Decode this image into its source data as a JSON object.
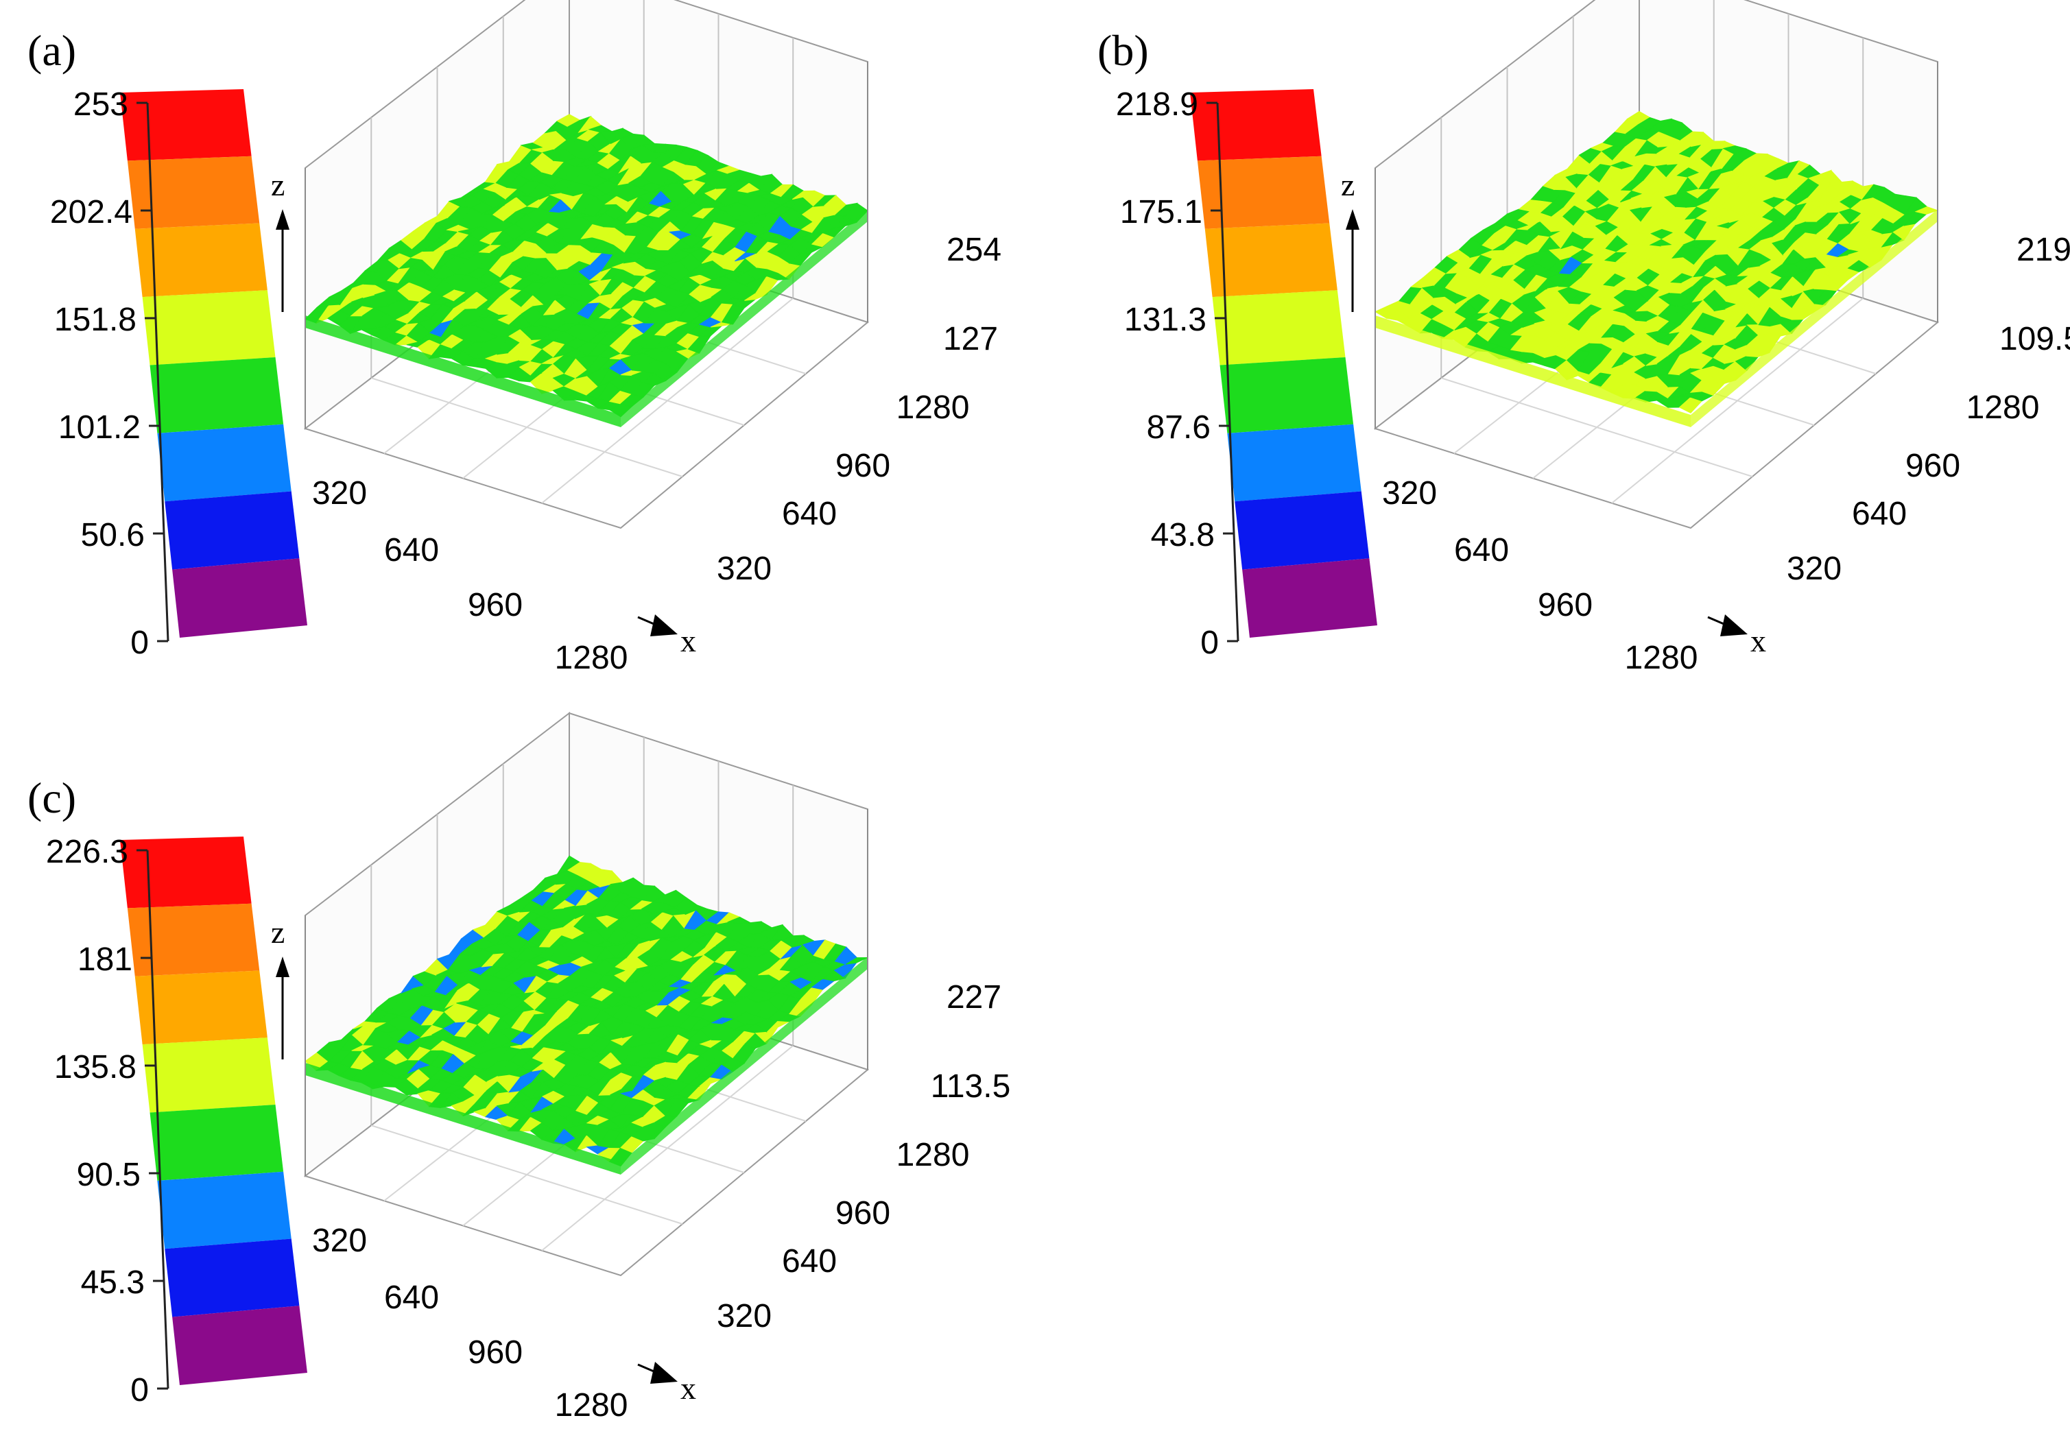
{
  "color_scale": [
    "#8b0a8b",
    "#0a18f0",
    "#0a82ff",
    "#1ddc1d",
    "#d8ff1a",
    "#ffa800",
    "#ff7e0a",
    "#ff0a0a"
  ],
  "chart_data": [
    {
      "type": "surface3d",
      "panel": "(a)",
      "colorbar_ticks": [
        "253",
        "202.4",
        "151.8",
        "101.2",
        "50.6",
        "0"
      ],
      "z_ticks": [
        "254",
        "127"
      ],
      "x_ticks": [
        "320",
        "640",
        "960",
        "1280"
      ],
      "y_ticks": [
        "1280",
        "960",
        "640",
        "320"
      ],
      "x_label": "x",
      "z_label": "z",
      "z_range": [
        0,
        253
      ],
      "surface": {
        "base": "#1ddc1d",
        "highlight": "#d8ff1a",
        "dip": "#0a82ff",
        "highlight_fraction": 0.22,
        "dip_fraction": 0.02
      }
    },
    {
      "type": "surface3d",
      "panel": "(b)",
      "colorbar_ticks": [
        "218.9",
        "175.1",
        "131.3",
        "87.6",
        "43.8",
        "0"
      ],
      "z_ticks": [
        "219",
        "109.5"
      ],
      "x_ticks": [
        "320",
        "640",
        "960",
        "1280"
      ],
      "y_ticks": [
        "1280",
        "960",
        "640",
        "320"
      ],
      "x_label": "x",
      "z_label": "z",
      "z_range": [
        0,
        218.9
      ],
      "surface": {
        "base": "#d8ff1a",
        "highlight": "#1ddc1d",
        "dip": "#0a82ff",
        "highlight_fraction": 0.38,
        "dip_fraction": 0.01
      }
    },
    {
      "type": "surface3d",
      "panel": "(c)",
      "colorbar_ticks": [
        "226.3",
        "181",
        "135.8",
        "90.5",
        "45.3",
        "0"
      ],
      "z_ticks": [
        "227",
        "113.5"
      ],
      "x_ticks": [
        "320",
        "640",
        "960",
        "1280"
      ],
      "y_ticks": [
        "1280",
        "960",
        "640",
        "320"
      ],
      "x_label": "x",
      "z_label": "z",
      "z_range": [
        0,
        226.3
      ],
      "surface": {
        "base": "#1ddc1d",
        "highlight": "#d8ff1a",
        "dip": "#0a82ff",
        "highlight_fraction": 0.2,
        "dip_fraction": 0.06
      }
    }
  ]
}
